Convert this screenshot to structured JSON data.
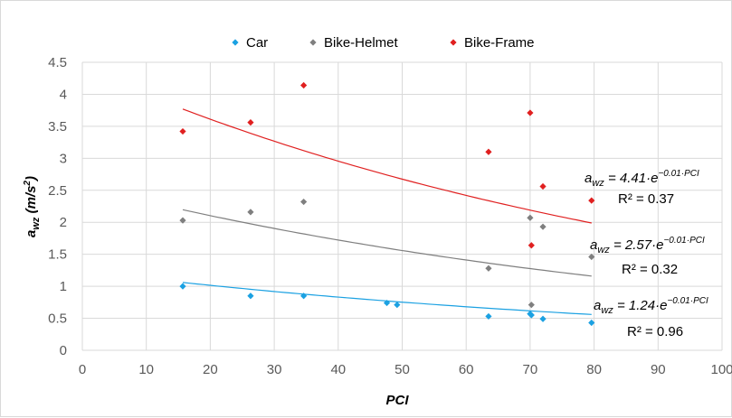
{
  "chart_data": {
    "type": "scatter",
    "xlabel": "PCI",
    "ylabel_main": "a",
    "ylabel_sub": "wz",
    "ylabel_unit": " (m/s",
    "ylabel_sup": "2",
    "ylabel_close": ")",
    "xlim": [
      0,
      100
    ],
    "ylim": [
      0,
      4.5
    ],
    "xticks": [
      0,
      10,
      20,
      30,
      40,
      50,
      60,
      70,
      80,
      90,
      100
    ],
    "yticks": [
      0,
      0.5,
      1,
      1.5,
      2,
      2.5,
      3,
      3.5,
      4,
      4.5
    ],
    "ytick_labels": [
      "0",
      "0.5",
      "1",
      "1.5",
      "2",
      "2.5",
      "3",
      "3.5",
      "4",
      "4.5"
    ],
    "grid": true,
    "legend_position": "top",
    "series": [
      {
        "name": "Car",
        "color": "#1ba1e2",
        "points": [
          [
            15.7,
            1.0
          ],
          [
            26.3,
            0.85
          ],
          [
            34.6,
            0.85
          ],
          [
            47.6,
            0.74
          ],
          [
            49.2,
            0.71
          ],
          [
            63.5,
            0.53
          ],
          [
            70.0,
            0.57
          ],
          [
            70.2,
            0.55
          ],
          [
            72.0,
            0.49
          ],
          [
            79.6,
            0.43
          ]
        ],
        "trend": {
          "a": 1.24,
          "b": -0.01,
          "label_main": "a",
          "label_sub": "wz",
          "label_rest": " = 1.24·e",
          "label_exp": "−0.01·PCI",
          "r2": "R² = 0.96"
        }
      },
      {
        "name": "Bike-Helmet",
        "color": "#7f7f7f",
        "points": [
          [
            15.7,
            2.03
          ],
          [
            26.3,
            2.16
          ],
          [
            34.6,
            2.32
          ],
          [
            63.5,
            1.28
          ],
          [
            70.0,
            2.07
          ],
          [
            70.2,
            0.71
          ],
          [
            72.0,
            1.93
          ],
          [
            79.6,
            1.46
          ]
        ],
        "trend": {
          "a": 2.57,
          "b": -0.01,
          "label_main": "a",
          "label_sub": "wz",
          "label_rest": " = 2.57·e",
          "label_exp": "−0.01·PCI",
          "r2": "R² = 0.32"
        }
      },
      {
        "name": "Bike-Frame",
        "color": "#e02020",
        "points": [
          [
            15.7,
            3.42
          ],
          [
            26.3,
            3.56
          ],
          [
            34.6,
            4.14
          ],
          [
            63.5,
            3.1
          ],
          [
            70.0,
            3.71
          ],
          [
            70.2,
            1.64
          ],
          [
            72.0,
            2.56
          ],
          [
            79.6,
            2.34
          ]
        ],
        "trend": {
          "a": 4.41,
          "b": -0.01,
          "label_main": "a",
          "label_sub": "wz",
          "label_rest": " = 4.41·e",
          "label_exp": "−0.01·PCI",
          "r2": "R² = 0.37"
        }
      }
    ]
  }
}
